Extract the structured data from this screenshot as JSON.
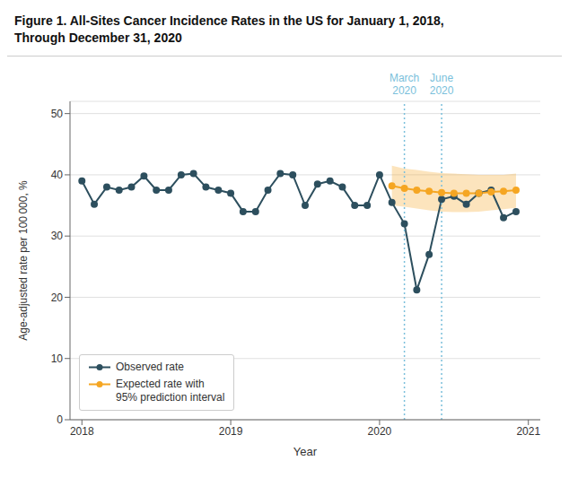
{
  "chart_data": {
    "type": "line",
    "title": "Figure 1. All-Sites Cancer Incidence Rates in the US for January 1, 2018,\nThrough December 31, 2020",
    "xlabel": "Year",
    "ylabel": "Age-adjusted rate per 100 000, %",
    "xlim": [
      2017.92,
      2021.08
    ],
    "xticks": [
      2018,
      2019,
      2020,
      2021
    ],
    "ylim": [
      0,
      52
    ],
    "yticks": [
      0,
      10,
      20,
      30,
      40,
      50
    ],
    "grid": true,
    "legend": "lower left",
    "series": [
      {
        "name": "Observed rate",
        "color": "#2d4f5e",
        "marker": "o",
        "x": [
          2018.0,
          2018.083,
          2018.167,
          2018.25,
          2018.333,
          2018.417,
          2018.5,
          2018.583,
          2018.667,
          2018.75,
          2018.833,
          2018.917,
          2019.0,
          2019.083,
          2019.167,
          2019.25,
          2019.333,
          2019.417,
          2019.5,
          2019.583,
          2019.667,
          2019.75,
          2019.833,
          2019.917,
          2020.0,
          2020.083,
          2020.167,
          2020.25,
          2020.333,
          2020.417,
          2020.5,
          2020.583,
          2020.667,
          2020.75,
          2020.833,
          2020.917
        ],
        "values": [
          39.0,
          35.2,
          38.0,
          37.5,
          38.0,
          39.8,
          37.5,
          37.5,
          40.0,
          40.2,
          38.0,
          37.5,
          37.0,
          34.0,
          34.0,
          37.5,
          40.2,
          40.0,
          35.0,
          38.5,
          39.0,
          38.0,
          35.0,
          35.0,
          40.0,
          35.5,
          32.0,
          21.2,
          27.0,
          36.0,
          36.5,
          35.2,
          37.0,
          37.5,
          33.0,
          34.0
        ]
      },
      {
        "name": "Expected rate with\n95% prediction interval",
        "color": "#f5a623",
        "marker": "o",
        "x": [
          2020.083,
          2020.167,
          2020.25,
          2020.333,
          2020.417,
          2020.5,
          2020.583,
          2020.667,
          2020.75,
          2020.833,
          2020.917
        ],
        "values": [
          38.2,
          37.8,
          37.5,
          37.3,
          37.1,
          37.0,
          37.0,
          37.0,
          37.2,
          37.3,
          37.5
        ],
        "lower": [
          35.0,
          34.8,
          34.5,
          34.2,
          34.0,
          33.9,
          33.9,
          34.0,
          34.2,
          34.4,
          34.6
        ],
        "upper": [
          41.5,
          41.0,
          40.8,
          40.5,
          40.3,
          40.2,
          40.1,
          40.0,
          40.0,
          40.0,
          40.2
        ]
      }
    ],
    "annotations": [
      {
        "x": 2020.167,
        "text": "March\n2020",
        "color": "#7abfdb"
      },
      {
        "x": 2020.417,
        "text": "June\n2020",
        "color": "#7abfdb"
      }
    ]
  }
}
